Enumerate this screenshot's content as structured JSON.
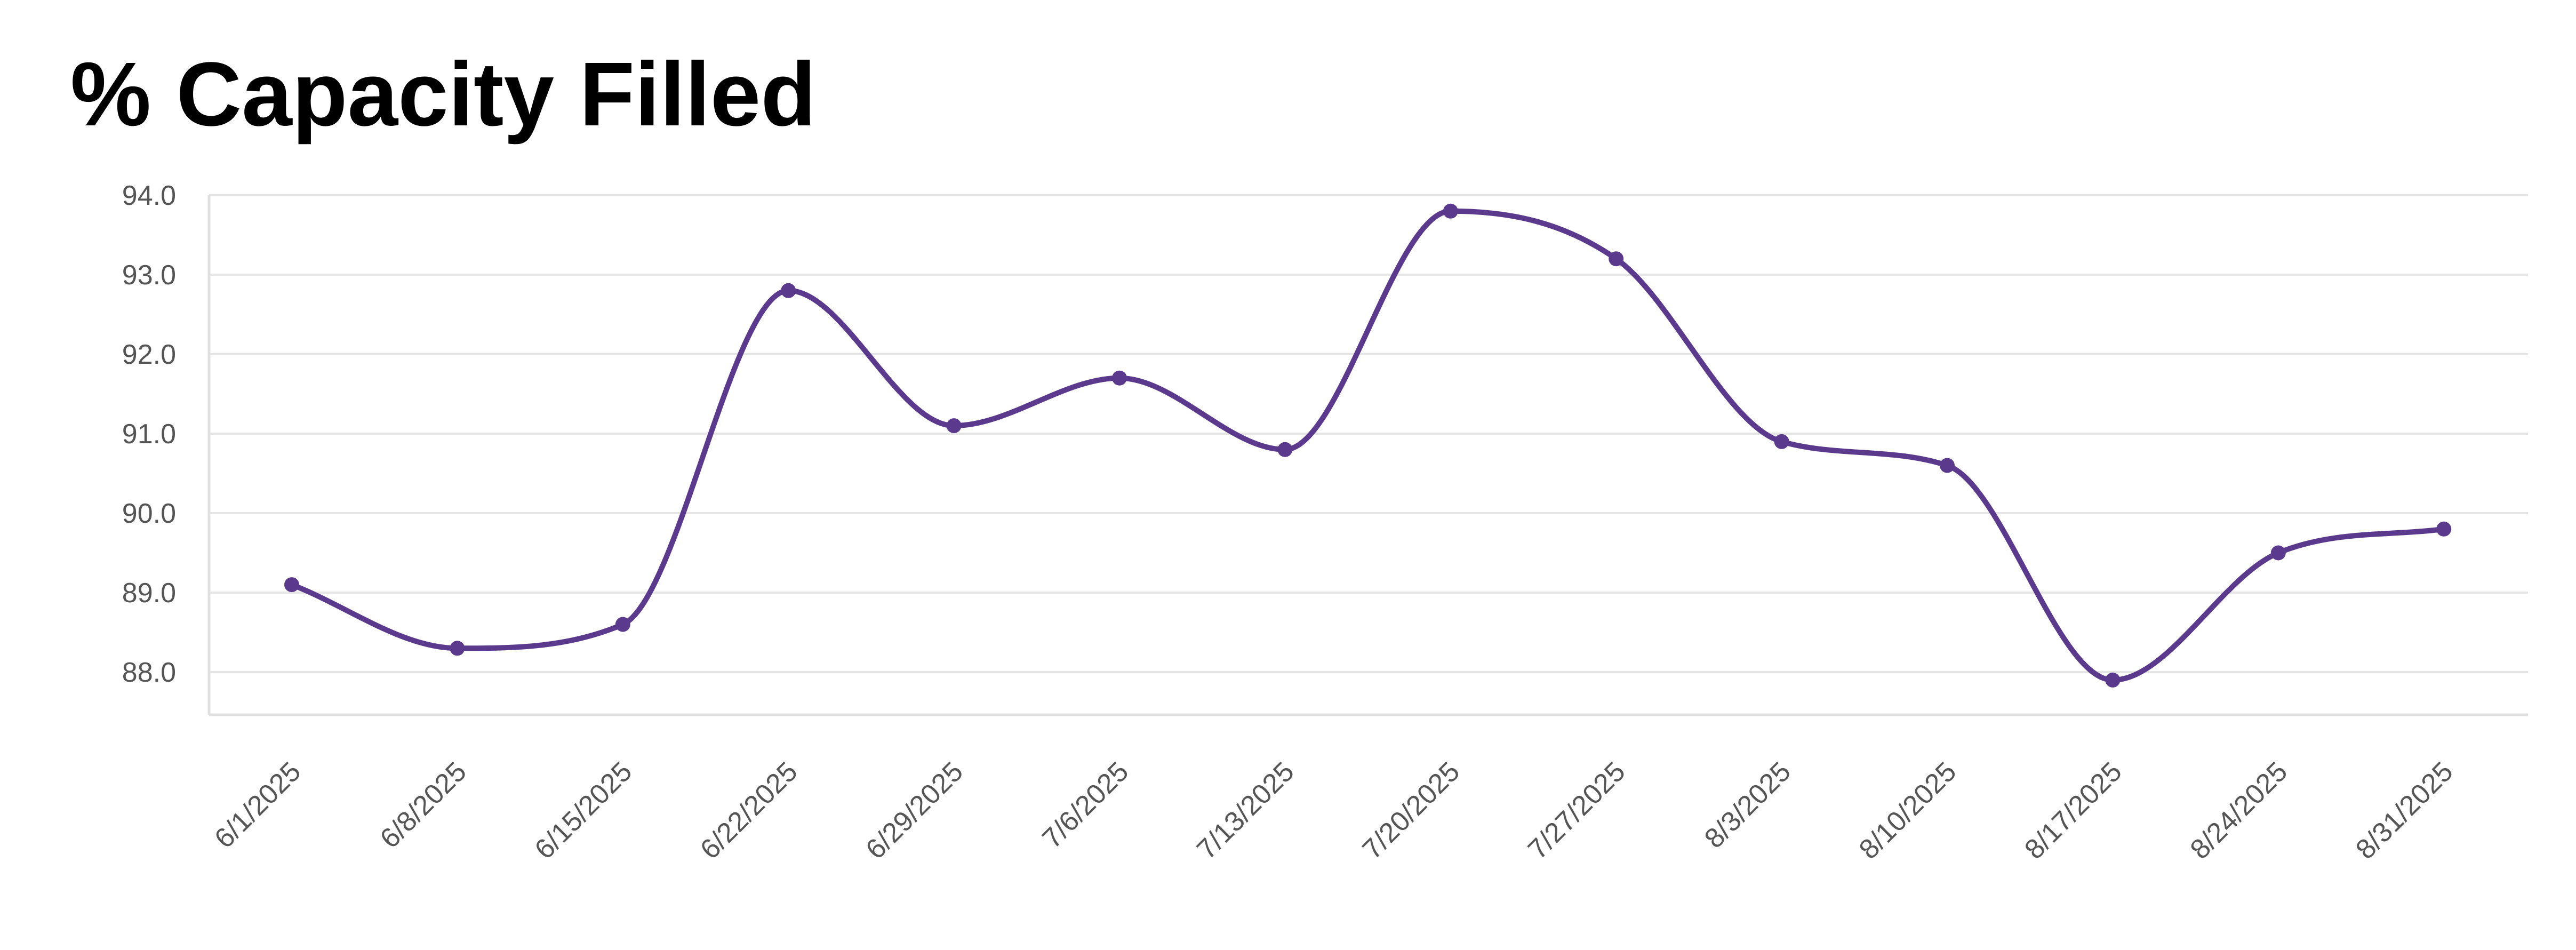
{
  "chart_data": {
    "type": "line",
    "title": "% Capacity Filled",
    "xlabel": "",
    "ylabel": "",
    "categories": [
      "6/1/2025",
      "6/8/2025",
      "6/15/2025",
      "6/22/2025",
      "6/29/2025",
      "7/6/2025",
      "7/13/2025",
      "7/20/2025",
      "7/27/2025",
      "8/3/2025",
      "8/10/2025",
      "8/17/2025",
      "8/24/2025",
      "8/31/2025"
    ],
    "series": [
      {
        "values": [
          89.1,
          88.3,
          88.6,
          92.8,
          91.1,
          91.7,
          90.8,
          93.8,
          93.2,
          90.9,
          90.6,
          87.9,
          89.5,
          89.8
        ],
        "color": "#5b3a8e"
      }
    ],
    "y_ticks": [
      "94.0",
      "93.0",
      "92.0",
      "91.0",
      "90.0",
      "89.0",
      "88.0"
    ],
    "ylim": [
      87.5,
      94.0
    ],
    "grid": true,
    "legend": "none",
    "curve": "smooth"
  }
}
